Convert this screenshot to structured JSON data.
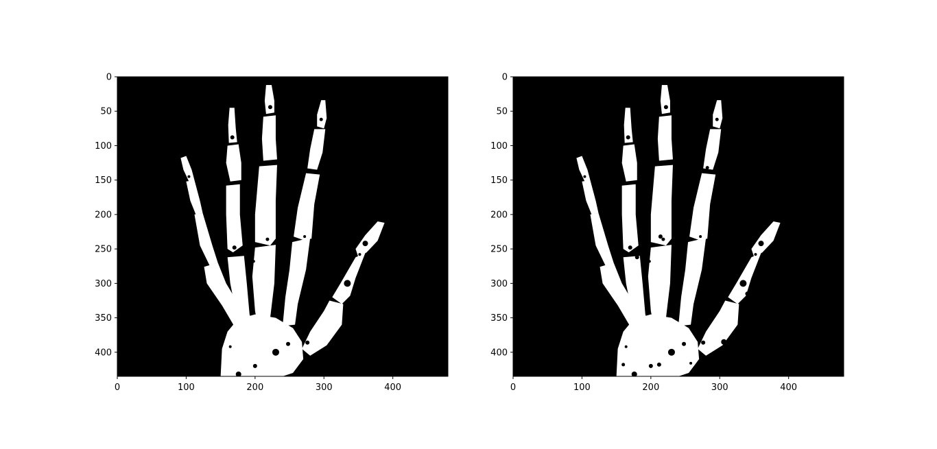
{
  "figure": {
    "panels": [
      {
        "name": "left-panel",
        "image": "binary-hand-xray-threshold-a",
        "xlim": [
          0,
          480
        ],
        "ylim": [
          435,
          0
        ],
        "xticks": [
          {
            "value": 0,
            "label": "0"
          },
          {
            "value": 100,
            "label": "100"
          },
          {
            "value": 200,
            "label": "200"
          },
          {
            "value": 300,
            "label": "300"
          },
          {
            "value": 400,
            "label": "400"
          }
        ],
        "yticks": [
          {
            "value": 0,
            "label": "0"
          },
          {
            "value": 50,
            "label": "50"
          },
          {
            "value": 100,
            "label": "100"
          },
          {
            "value": 150,
            "label": "150"
          },
          {
            "value": 200,
            "label": "200"
          },
          {
            "value": 250,
            "label": "250"
          },
          {
            "value": 300,
            "label": "300"
          },
          {
            "value": 350,
            "label": "350"
          },
          {
            "value": 400,
            "label": "400"
          }
        ]
      },
      {
        "name": "right-panel",
        "image": "binary-hand-xray-threshold-b",
        "xlim": [
          0,
          480
        ],
        "ylim": [
          435,
          0
        ],
        "xticks": [
          {
            "value": 0,
            "label": "0"
          },
          {
            "value": 100,
            "label": "100"
          },
          {
            "value": 200,
            "label": "200"
          },
          {
            "value": 300,
            "label": "300"
          },
          {
            "value": 400,
            "label": "400"
          }
        ],
        "yticks": [
          {
            "value": 0,
            "label": "0"
          },
          {
            "value": 50,
            "label": "50"
          },
          {
            "value": 100,
            "label": "100"
          },
          {
            "value": 150,
            "label": "150"
          },
          {
            "value": 200,
            "label": "200"
          },
          {
            "value": 250,
            "label": "250"
          },
          {
            "value": 300,
            "label": "300"
          },
          {
            "value": 350,
            "label": "350"
          },
          {
            "value": 400,
            "label": "400"
          }
        ]
      }
    ],
    "colors": {
      "background": "#000000",
      "foreground": "#ffffff",
      "axis": "#000000"
    }
  }
}
